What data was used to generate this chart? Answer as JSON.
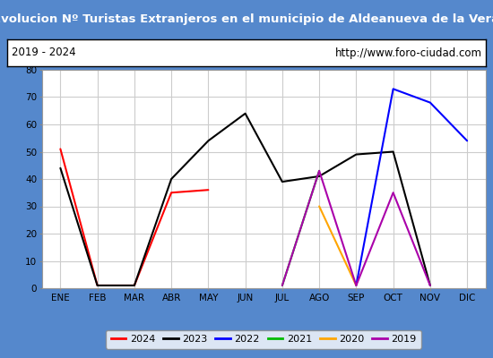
{
  "title": "Evolucion Nº Turistas Extranjeros en el municipio de Aldeanueva de la Vera",
  "subtitle_left": "2019 - 2024",
  "subtitle_right": "http://www.foro-ciudad.com",
  "months": [
    "ENE",
    "FEB",
    "MAR",
    "ABR",
    "MAY",
    "JUN",
    "JUL",
    "AGO",
    "SEP",
    "OCT",
    "NOV",
    "DIC"
  ],
  "ylim": [
    0,
    80
  ],
  "yticks": [
    0,
    10,
    20,
    30,
    40,
    50,
    60,
    70,
    80
  ],
  "series": {
    "2024": {
      "color": "#ff0000",
      "data": [
        51,
        1,
        1,
        35,
        36,
        null,
        null,
        null,
        null,
        null,
        null,
        null
      ]
    },
    "2023": {
      "color": "#000000",
      "data": [
        44,
        1,
        1,
        40,
        54,
        64,
        39,
        41,
        49,
        50,
        1,
        null
      ]
    },
    "2022": {
      "color": "#0000ff",
      "data": [
        null,
        null,
        null,
        null,
        null,
        null,
        null,
        null,
        1,
        73,
        68,
        54
      ]
    },
    "2021": {
      "color": "#00bb00",
      "data": [
        null,
        null,
        null,
        null,
        null,
        null,
        1,
        43,
        null,
        null,
        null,
        null
      ]
    },
    "2020": {
      "color": "#ffa500",
      "data": [
        null,
        null,
        null,
        null,
        null,
        null,
        null,
        30,
        1,
        null,
        null,
        null
      ]
    },
    "2019": {
      "color": "#aa00aa",
      "data": [
        null,
        null,
        null,
        null,
        null,
        null,
        1,
        43,
        1,
        35,
        1,
        null
      ]
    }
  },
  "outer_bg_color": "#5588cc",
  "plot_bg_color": "#ffffff",
  "title_bg_color": "#5588cc",
  "title_text_color": "#ffffff",
  "subtitle_bg_color": "#ffffff",
  "subtitle_text_color": "#000000",
  "subtitle_border_color": "#000000",
  "grid_color": "#cccccc",
  "legend_order": [
    "2024",
    "2023",
    "2022",
    "2021",
    "2020",
    "2019"
  ]
}
